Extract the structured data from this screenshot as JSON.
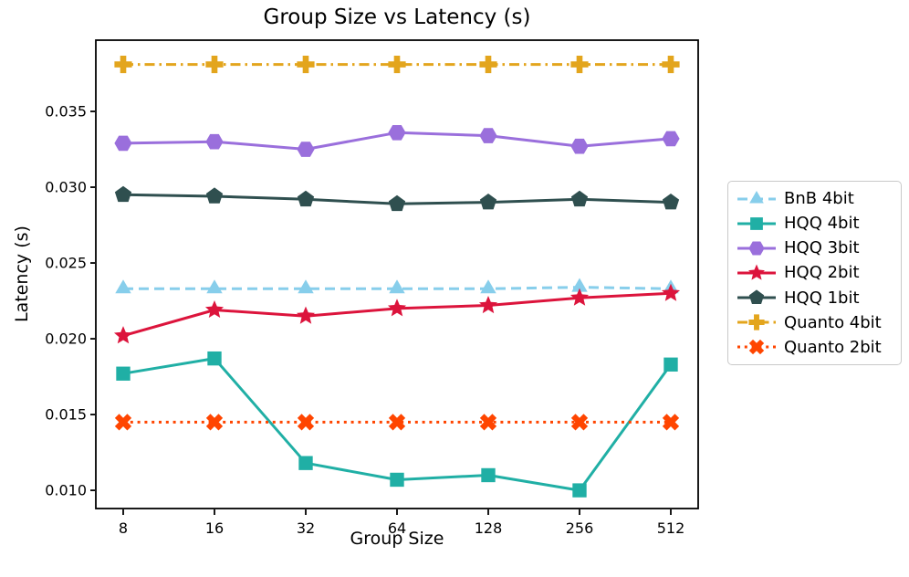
{
  "chart_data": {
    "type": "line",
    "title": "Group Size vs Latency (s)",
    "xlabel": "Group Size",
    "ylabel": "Latency (s)",
    "x_categories": [
      "8",
      "16",
      "32",
      "64",
      "128",
      "256",
      "512"
    ],
    "x_scale_note": "categorical power-of-two spacing (equal intervals)",
    "ytick_values": [
      0.01,
      0.015,
      0.02,
      0.025,
      0.03,
      0.035
    ],
    "ytick_labels": [
      "0.010",
      "0.015",
      "0.020",
      "0.025",
      "0.030",
      "0.035"
    ],
    "ylim": [
      0.0088,
      0.0397
    ],
    "grid": false,
    "legend_position": "outside-right",
    "axis_color": "#000000",
    "series": [
      {
        "name": "BnB 4bit",
        "color": "#87CEEB",
        "linestyle": "dashed",
        "marker": "triangle",
        "values": [
          0.0233,
          0.0233,
          0.0233,
          0.0233,
          0.0233,
          0.0234,
          0.0233
        ]
      },
      {
        "name": "HQQ 4bit",
        "color": "#20AFA5",
        "linestyle": "solid",
        "marker": "square",
        "values": [
          0.0177,
          0.0187,
          0.0118,
          0.0107,
          0.011,
          0.01,
          0.0183
        ]
      },
      {
        "name": "HQQ 3bit",
        "color": "#9A6FDC",
        "linestyle": "solid",
        "marker": "hexagon",
        "values": [
          0.0329,
          0.033,
          0.0325,
          0.0336,
          0.0334,
          0.0327,
          0.0332
        ]
      },
      {
        "name": "HQQ 2bit",
        "color": "#DC143C",
        "linestyle": "solid",
        "marker": "star",
        "values": [
          0.0202,
          0.0219,
          0.0215,
          0.022,
          0.0222,
          0.0227,
          0.023
        ]
      },
      {
        "name": "HQQ 1bit",
        "color": "#2F4F4F",
        "linestyle": "solid",
        "marker": "pentagon",
        "values": [
          0.0295,
          0.0294,
          0.0292,
          0.0289,
          0.029,
          0.0292,
          0.029
        ]
      },
      {
        "name": "Quanto 4bit",
        "color": "#E3A51D",
        "linestyle": "dashdot",
        "marker": "plus",
        "values": [
          0.0381,
          0.0381,
          0.0381,
          0.0381,
          0.0381,
          0.0381,
          0.0381
        ]
      },
      {
        "name": "Quanto 2bit",
        "color": "#FF4500",
        "linestyle": "dotted",
        "marker": "x",
        "values": [
          0.0145,
          0.0145,
          0.0145,
          0.0145,
          0.0145,
          0.0145,
          0.0145
        ]
      }
    ]
  }
}
